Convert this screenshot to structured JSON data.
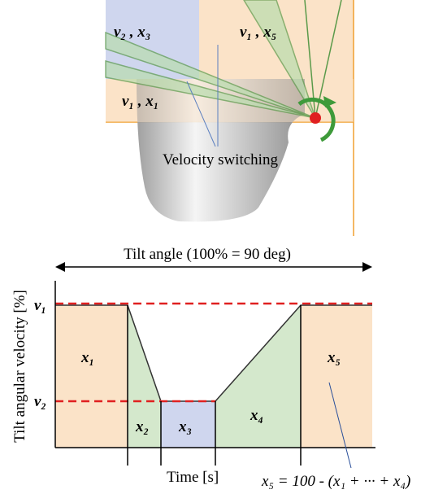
{
  "illustration": {
    "regions": [
      "v₂ , x₃",
      "v₁ , x₅",
      "v₁ , x₁"
    ],
    "annotation": "Velocity switching"
  },
  "graph": {
    "title": "Tilt angle (100% = 90 deg)",
    "y_label": "Tilt angular velocity [%]",
    "x_label": "Time [s]",
    "levels": [
      "v₁",
      "v₂"
    ],
    "phases": [
      "x₁",
      "x₂",
      "x₃",
      "x₄",
      "x₅"
    ],
    "formula": "x₅ = 100 - (x₁ + ··· + x₄)"
  }
}
